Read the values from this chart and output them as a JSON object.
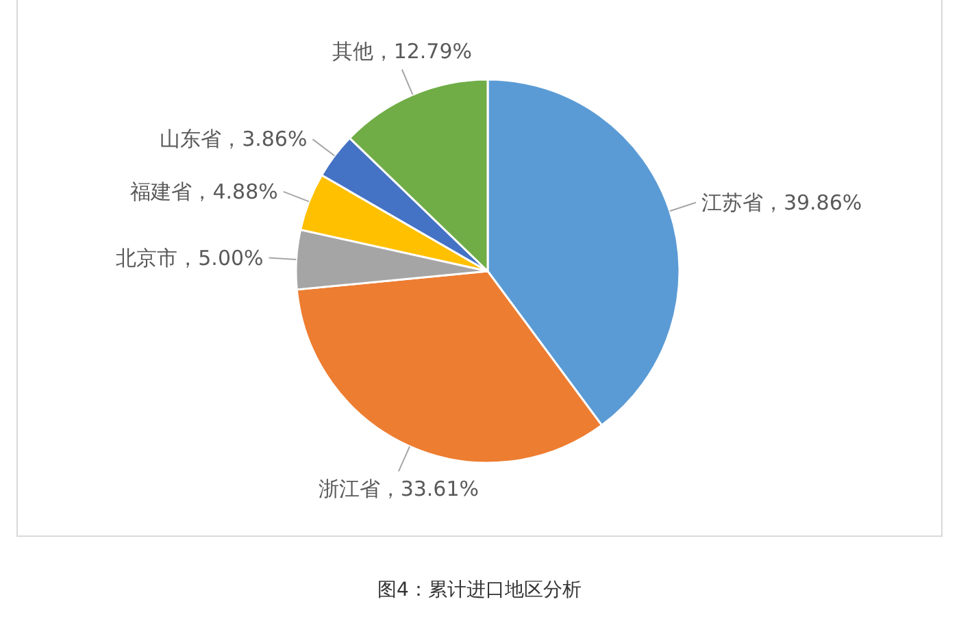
{
  "chart_data": {
    "type": "pie",
    "categories": [
      "江苏省",
      "浙江省",
      "北京市",
      "福建省",
      "山东省",
      "其他"
    ],
    "values": [
      39.86,
      33.61,
      5.0,
      4.88,
      3.86,
      12.79
    ],
    "colors": [
      "#5b9bd5",
      "#ed7d31",
      "#a5a5a5",
      "#ffc000",
      "#4472c4",
      "#70ad47"
    ],
    "value_labels": [
      "39.86%",
      "33.61%",
      "5.00%",
      "4.88%",
      "3.86%",
      "12.79%"
    ],
    "annotations": [
      "图4：累计进口地区分析"
    ]
  }
}
